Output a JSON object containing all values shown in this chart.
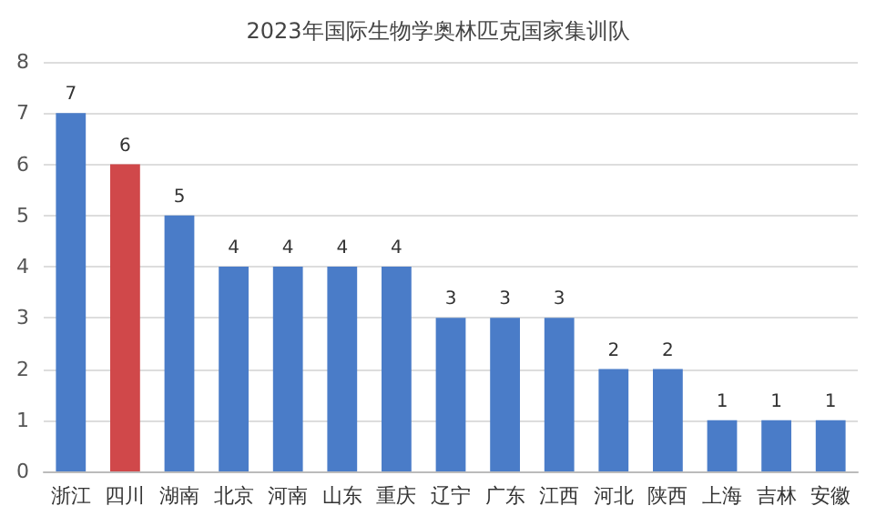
{
  "chart_data": {
    "type": "bar",
    "title": "2023年国际生物学奥林匹克国家集训队",
    "categories": [
      "浙江",
      "四川",
      "湖南",
      "北京",
      "河南",
      "山东",
      "重庆",
      "辽宁",
      "广东",
      "江西",
      "河北",
      "陕西",
      "上海",
      "吉林",
      "安徽"
    ],
    "values": [
      7,
      6,
      5,
      4,
      4,
      4,
      4,
      3,
      3,
      3,
      2,
      2,
      1,
      1,
      1
    ],
    "colors": [
      "#4a7cc8",
      "#d0484a",
      "#4a7cc8",
      "#4a7cc8",
      "#4a7cc8",
      "#4a7cc8",
      "#4a7cc8",
      "#4a7cc8",
      "#4a7cc8",
      "#4a7cc8",
      "#4a7cc8",
      "#4a7cc8",
      "#4a7cc8",
      "#4a7cc8",
      "#4a7cc8"
    ],
    "ylim": [
      0,
      8
    ],
    "yticks": [
      0,
      1,
      2,
      3,
      4,
      5,
      6,
      7,
      8
    ],
    "grid": "y",
    "data_labels": true
  }
}
